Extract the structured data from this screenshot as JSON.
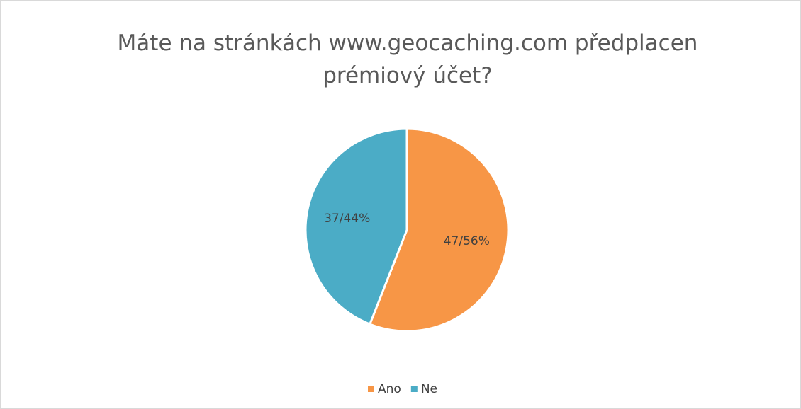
{
  "chart_data": {
    "type": "pie",
    "title": "Máte na stránkách www.geocaching.com předplacen prémiový účet?",
    "categories": [
      "Ano",
      "Ne"
    ],
    "values": [
      47,
      37
    ],
    "value_labels": [
      "47/56%",
      "37/44%"
    ],
    "colors": [
      "#f79646",
      "#4bacc6"
    ],
    "legend": "bottom"
  }
}
